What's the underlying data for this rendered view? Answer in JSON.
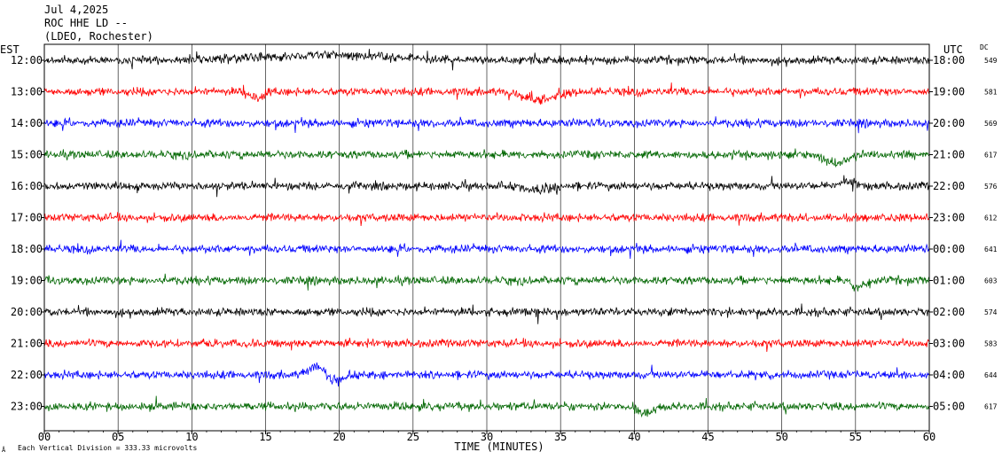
{
  "header": {
    "date": "Jul 4,2025",
    "station": "ROC HHE LD --",
    "network": "(LDEO, Rochester)"
  },
  "chart_data": {
    "type": "line",
    "title": "",
    "xlabel": "TIME (MINUTES)",
    "left_axis_label": "EST",
    "right_axis_label": "UTC",
    "dc_label": "DC",
    "x_ticks": [
      "00",
      "05",
      "10",
      "15",
      "20",
      "25",
      "30",
      "35",
      "40",
      "45",
      "50",
      "55",
      "60"
    ],
    "xlim": [
      0,
      60
    ],
    "footer_note": "Each Vertical Division =  333.33 microvolts",
    "footer_mark": "Å",
    "trace_colors": [
      "#000000",
      "#ff0000",
      "#0000ff",
      "#006600"
    ],
    "rows": [
      {
        "est": "12:00",
        "utc": "18:00",
        "dc": "549",
        "color": "#000000"
      },
      {
        "est": "13:00",
        "utc": "19:00",
        "dc": "581",
        "color": "#ff0000"
      },
      {
        "est": "14:00",
        "utc": "20:00",
        "dc": "569",
        "color": "#0000ff"
      },
      {
        "est": "15:00",
        "utc": "21:00",
        "dc": "617",
        "color": "#006600"
      },
      {
        "est": "16:00",
        "utc": "22:00",
        "dc": "576",
        "color": "#000000"
      },
      {
        "est": "17:00",
        "utc": "23:00",
        "dc": "612",
        "color": "#ff0000"
      },
      {
        "est": "18:00",
        "utc": "00:00",
        "dc": "641",
        "color": "#0000ff"
      },
      {
        "est": "19:00",
        "utc": "01:00",
        "dc": "603",
        "color": "#006600"
      },
      {
        "est": "20:00",
        "utc": "02:00",
        "dc": "574",
        "color": "#000000"
      },
      {
        "est": "21:00",
        "utc": "03:00",
        "dc": "583",
        "color": "#ff0000"
      },
      {
        "est": "22:00",
        "utc": "04:00",
        "dc": "644",
        "color": "#0000ff"
      },
      {
        "est": "23:00",
        "utc": "05:00",
        "dc": "617",
        "color": "#006600"
      }
    ]
  }
}
